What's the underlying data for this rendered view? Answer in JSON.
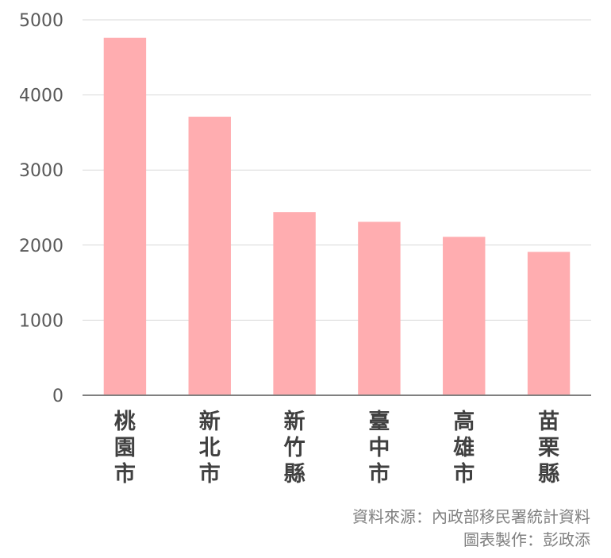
{
  "chart_data": {
    "type": "bar",
    "categories": [
      "桃園市",
      "新北市",
      "新竹縣",
      "臺中市",
      "高雄市",
      "苗栗縣"
    ],
    "values": [
      4760,
      3710,
      2440,
      2310,
      2110,
      1910
    ],
    "ylim": [
      0,
      5000
    ],
    "yticks": [
      0,
      1000,
      2000,
      3000,
      4000,
      5000
    ],
    "grid": true,
    "bar_color": "#ffadb0",
    "title": "",
    "xlabel": "",
    "ylabel": ""
  },
  "notes": {
    "source": "資料來源：內政部移民署統計資料",
    "author": "圖表製作：彭政添"
  }
}
